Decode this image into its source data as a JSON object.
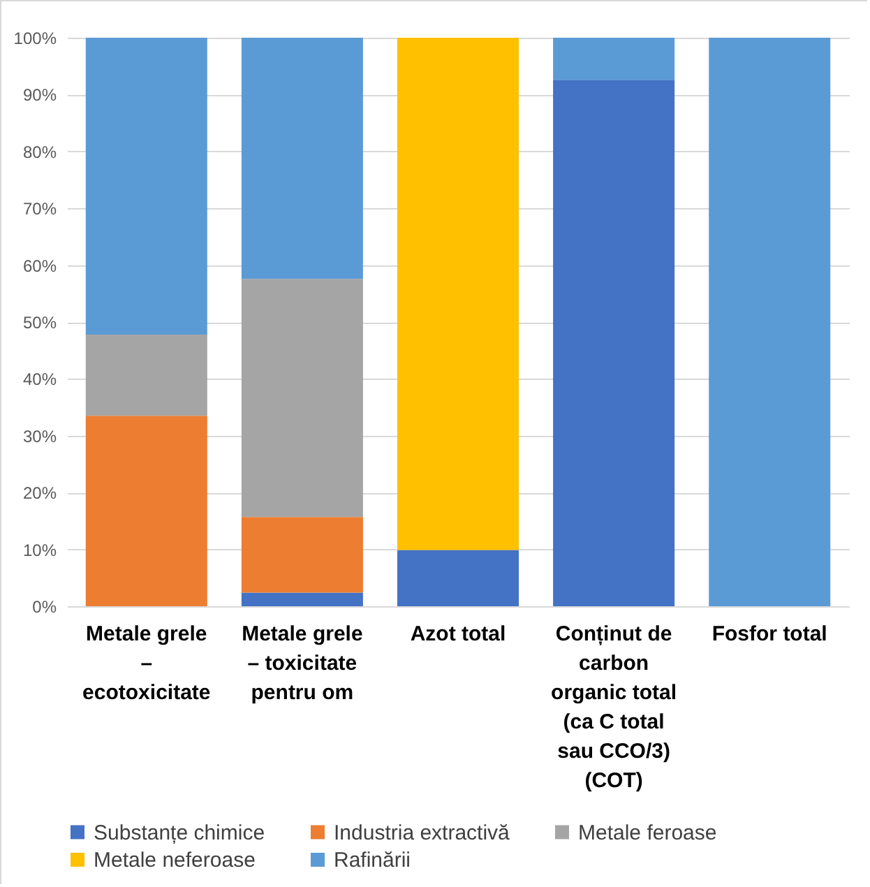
{
  "chart_data": {
    "type": "bar",
    "stacked": true,
    "categories": [
      "Metale grele – ecotoxicitate",
      "Metale grele – toxicitate pentru om",
      "Azot total",
      "Conținut de carbon organic total (ca C total sau CCO/3) (COT)",
      "Fosfor total"
    ],
    "series": [
      {
        "name": "Substanțe chimice",
        "color": "#4472c4",
        "values": [
          0,
          2.4,
          9.9,
          92.6,
          0
        ]
      },
      {
        "name": "Industria extractivă",
        "color": "#ed7d31",
        "values": [
          33.5,
          13.3,
          0,
          0,
          0
        ]
      },
      {
        "name": "Metale feroase",
        "color": "#a5a5a5",
        "values": [
          14.3,
          41.9,
          0,
          0,
          0
        ]
      },
      {
        "name": "Metale neferoase",
        "color": "#ffc000",
        "values": [
          0,
          0,
          90.1,
          0,
          0
        ]
      },
      {
        "name": "Rafinării",
        "color": "#5b9bd5",
        "values": [
          52.2,
          42.4,
          0,
          7.4,
          100
        ]
      }
    ],
    "ylim": [
      0,
      100
    ],
    "yticks": [
      {
        "value": 0,
        "label": "0%"
      },
      {
        "value": 10,
        "label": "10%"
      },
      {
        "value": 20,
        "label": "20%"
      },
      {
        "value": 30,
        "label": "30%"
      },
      {
        "value": 40,
        "label": "40%"
      },
      {
        "value": 50,
        "label": "50%"
      },
      {
        "value": 60,
        "label": "60%"
      },
      {
        "value": 70,
        "label": "70%"
      },
      {
        "value": 80,
        "label": "80%"
      },
      {
        "value": 90,
        "label": "90%"
      },
      {
        "value": 100,
        "label": "100%"
      }
    ],
    "grid": "y",
    "legend": "bottom"
  }
}
